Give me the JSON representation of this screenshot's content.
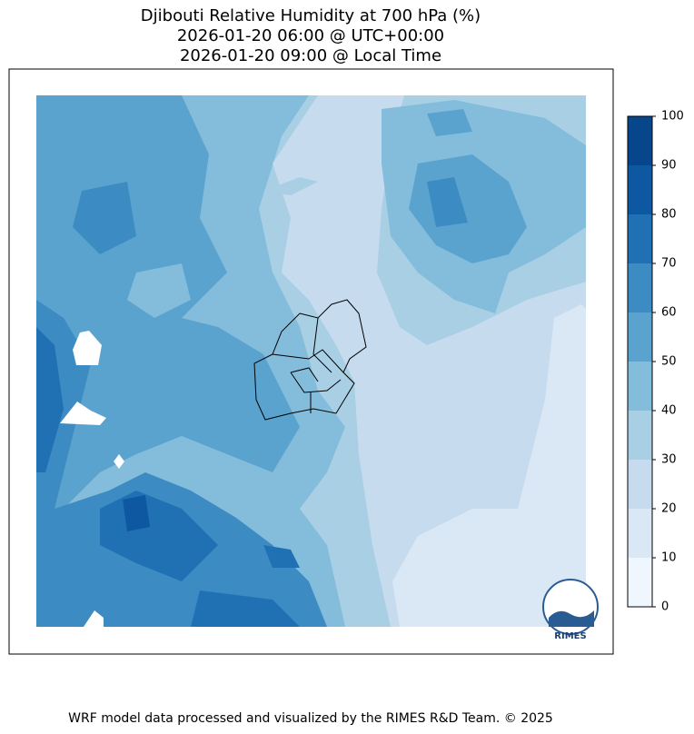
{
  "title": [
    "Djibouti Relative Humidity at 700 hPa (%)",
    "2026-01-20 06:00 @ UTC+00:00",
    "2026-01-20 09:00 @ Local Time"
  ],
  "colorbar": {
    "ticks": [
      0,
      10,
      20,
      30,
      40,
      50,
      60,
      70,
      80,
      90,
      100
    ],
    "colors": [
      "#f0f6fd",
      "#dae8f5",
      "#c7dbef",
      "#a9cfe5",
      "#84bcdb",
      "#5ba3cf",
      "#3d8bc3",
      "#2070b4",
      "#0e58a2",
      "#08468b"
    ]
  },
  "logo": {
    "label": "RIMES"
  },
  "footer": "WRF model data processed and visualized by the RIMES R&D Team. © 2025"
}
